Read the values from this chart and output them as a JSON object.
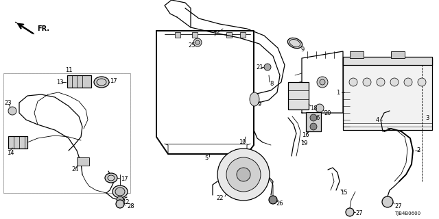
{
  "bg_color": "#ffffff",
  "diagram_code": "TJB4B0600",
  "label_size": 6.0,
  "lw_thin": 0.6,
  "lw_med": 0.9,
  "lw_thick": 1.4
}
